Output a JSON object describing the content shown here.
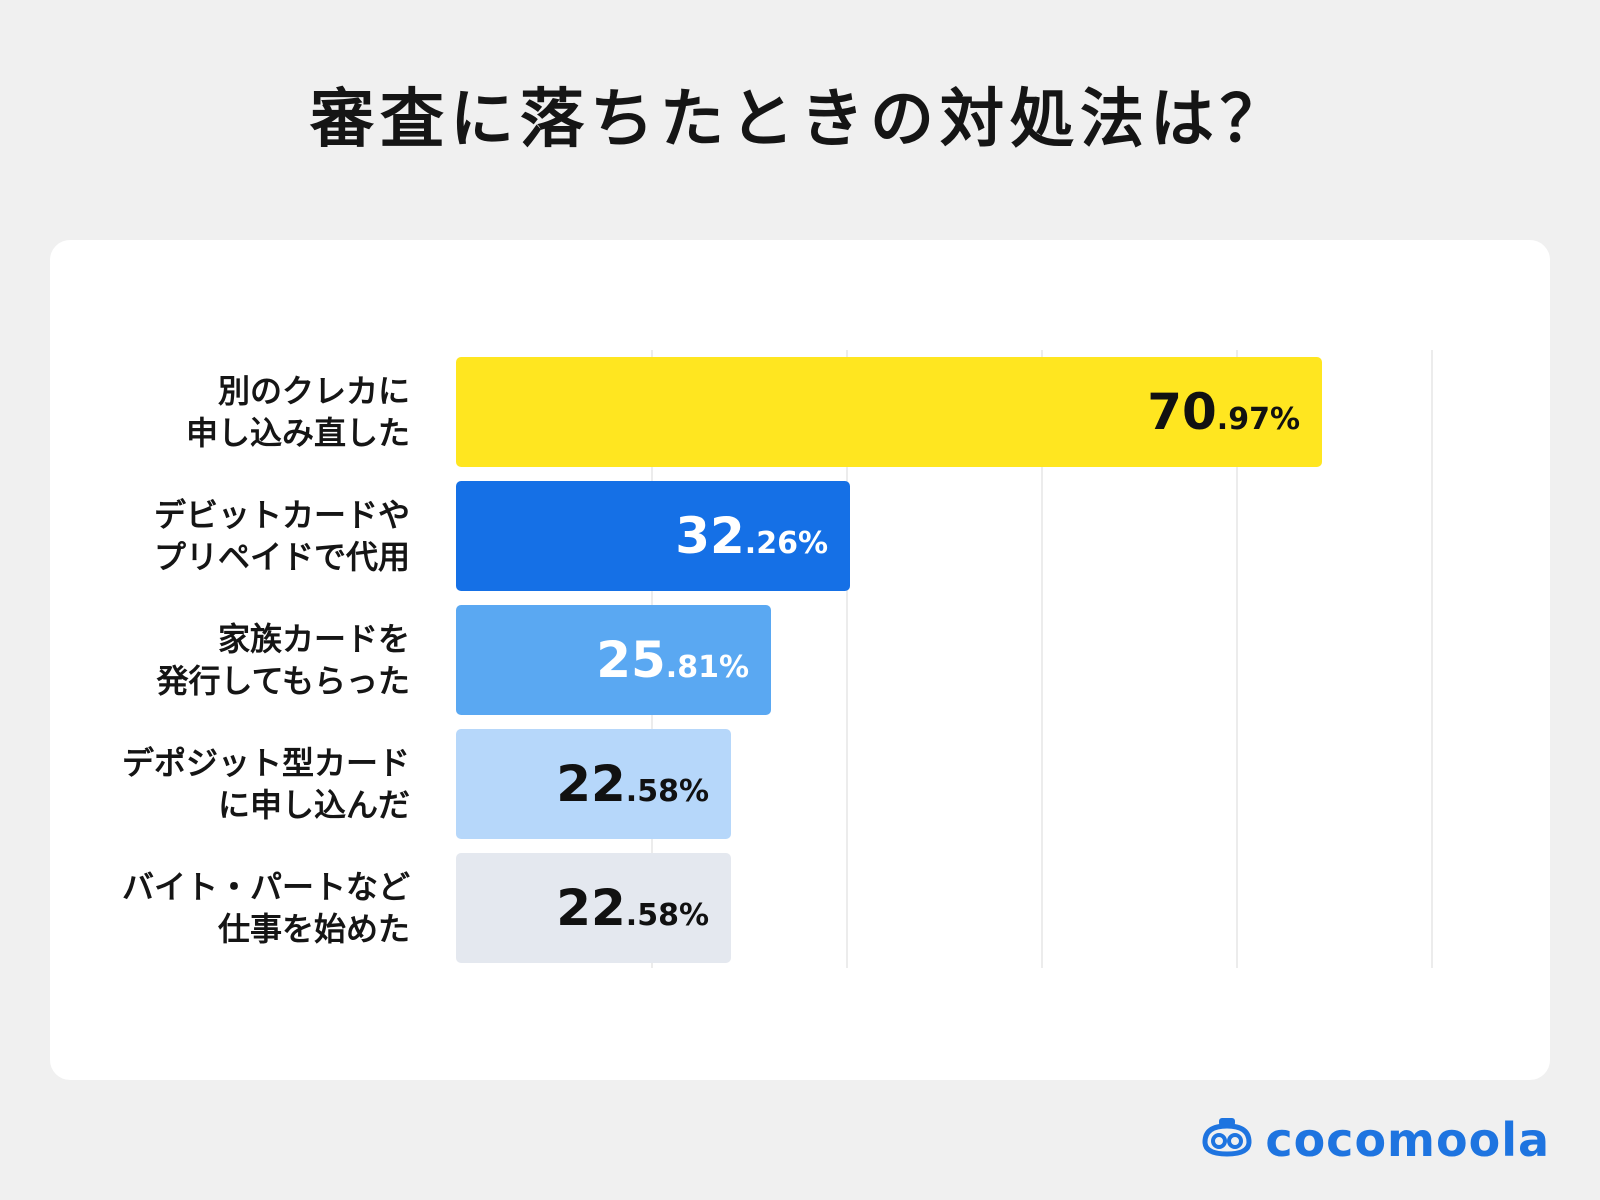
{
  "title": "審査に落ちたときの対処法は？",
  "brand": {
    "name": "cocomoola",
    "icon": "cocomoola-logo-icon",
    "color": "#1e74e0"
  },
  "chart_data": {
    "type": "bar",
    "orientation": "horizontal",
    "title": "審査に落ちたときの対処法は？",
    "xlim": [
      0,
      100
    ],
    "grid": true,
    "categories": [
      [
        "別のクレカに",
        "申し込み直した"
      ],
      [
        "デビットカードや",
        "プリペイドで代用"
      ],
      [
        "家族カードを",
        "発行してもらった"
      ],
      [
        "デポジット型カード",
        "に申し込んだ"
      ],
      [
        "バイト・パートなど",
        "仕事を始めた"
      ]
    ],
    "values": [
      70.97,
      32.26,
      25.81,
      22.58,
      22.58
    ],
    "value_labels": [
      {
        "int": "70",
        "dec": ".97%"
      },
      {
        "int": "32",
        "dec": ".26%"
      },
      {
        "int": "25",
        "dec": ".81%"
      },
      {
        "int": "22",
        "dec": ".58%"
      },
      {
        "int": "22",
        "dec": ".58%"
      }
    ],
    "bar_colors": [
      "#ffe620",
      "#1570e6",
      "#5aa8f2",
      "#b6d7fa",
      "#e4e8ef"
    ],
    "label_colors": [
      "#111111",
      "#ffffff",
      "#ffffff",
      "#111111",
      "#111111"
    ]
  }
}
